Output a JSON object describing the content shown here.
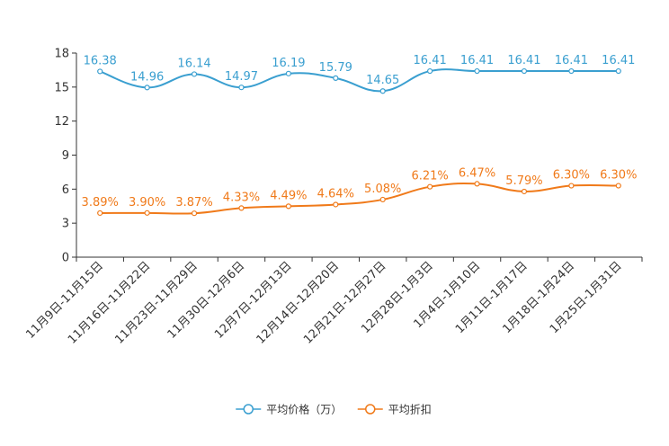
{
  "chart_data": {
    "type": "line",
    "title": "",
    "xlabel": "",
    "ylabel": "",
    "ylim": [
      0,
      18
    ],
    "yticks": [
      0,
      3,
      6,
      9,
      12,
      15,
      18
    ],
    "grid": false,
    "legend_position": "bottom-center",
    "categories": [
      "11月9日-11月15日",
      "11月16日-11月22日",
      "11月23日-11月29日",
      "11月30日-12月6日",
      "12月7日-12月13日",
      "12月14日-12月20日",
      "12月21日-12月27日",
      "12月28日-1月3日",
      "1月4日-1月10日",
      "1月11日-1月17日",
      "1月18日-1月24日",
      "1月25日-1月31日"
    ],
    "series": [
      {
        "name": "平均价格（万）",
        "color": "#3a9fd0",
        "values": [
          16.38,
          14.96,
          16.14,
          14.97,
          16.19,
          15.79,
          14.65,
          16.41,
          16.41,
          16.41,
          16.41,
          16.41
        ],
        "labels": [
          "16.38",
          "14.96",
          "16.14",
          "14.97",
          "16.19",
          "15.79",
          "14.65",
          "16.41",
          "16.41",
          "16.41",
          "16.41",
          "16.41"
        ]
      },
      {
        "name": "平均折扣",
        "color": "#f07a1a",
        "values": [
          3.89,
          3.9,
          3.87,
          4.33,
          4.49,
          4.64,
          5.08,
          6.21,
          6.47,
          5.79,
          6.3,
          6.3
        ],
        "labels": [
          "3.89%",
          "3.90%",
          "3.87%",
          "4.33%",
          "4.49%",
          "4.64%",
          "5.08%",
          "6.21%",
          "6.47%",
          "5.79%",
          "6.30%",
          "6.30%"
        ]
      }
    ]
  }
}
